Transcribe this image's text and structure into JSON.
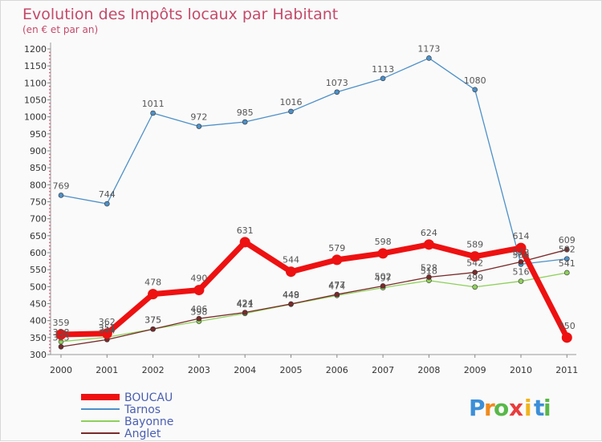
{
  "chart_data": {
    "type": "line",
    "title": "Evolution des Impôts locaux par Habitant",
    "subtitle": "(en € et par an)",
    "xlabel": "",
    "ylabel": "",
    "x": [
      "2000",
      "2001",
      "2002",
      "2003",
      "2004",
      "2005",
      "2006",
      "2007",
      "2008",
      "2009",
      "2010",
      "2011"
    ],
    "ylim": [
      300,
      1200
    ],
    "yticks": [
      300,
      350,
      400,
      450,
      500,
      550,
      600,
      650,
      700,
      750,
      800,
      850,
      900,
      950,
      1000,
      1050,
      1100,
      1150,
      1200
    ],
    "grid": false,
    "legend_position": "bottom-left",
    "series": [
      {
        "name": "Tarnos",
        "color": "#4d90c8",
        "values": [
          769,
          744,
          1011,
          972,
          985,
          1016,
          1073,
          1113,
          1173,
          1080,
          566,
          582
        ]
      },
      {
        "name": "Bayonne",
        "color": "#8ed05a",
        "values": [
          338,
          351,
          375,
          398,
          421,
          448,
          474,
          497,
          518,
          499,
          516,
          541
        ]
      },
      {
        "name": "Anglet",
        "color": "#7a2a2a",
        "values": [
          323,
          344,
          375,
          406,
          424,
          449,
          477,
          502,
          528,
          542,
          573,
          609
        ]
      },
      {
        "name": "BOUCAU",
        "color": "#ee1111",
        "values": [
          359,
          362,
          478,
          490,
          631,
          544,
          579,
          598,
          624,
          589,
          614,
          350
        ]
      }
    ],
    "legend": [
      "BOUCAU",
      "Tarnos",
      "Bayonne",
      "Anglet"
    ]
  },
  "brand": {
    "letters": [
      "P",
      "r",
      "o",
      "x",
      "i",
      "t",
      "i"
    ],
    "colors": [
      "#3c8fd8",
      "#f08a1c",
      "#58b848",
      "#e83c3c",
      "#f0b41c",
      "#3c8fd8",
      "#58b848"
    ]
  }
}
